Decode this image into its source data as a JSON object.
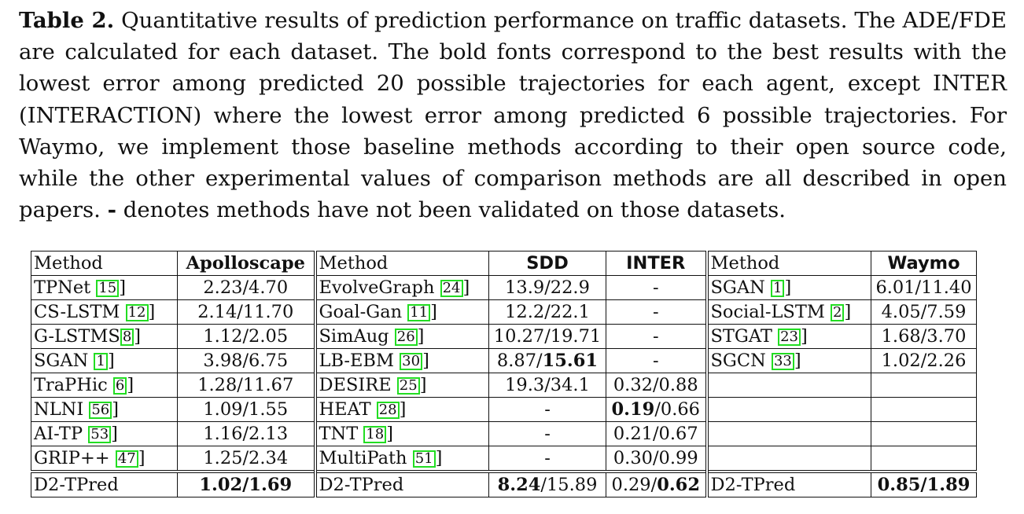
{
  "caption": {
    "label": "Table 2.",
    "text_1": " Quantitative results of prediction performance on traffic datasets. The ADE/FDE are calculated for each dataset. The bold fonts correspond to the best results with the lowest error among predicted 20 possible trajectories for each agent, except INTER (INTERACTION) where the lowest error among predicted 6 possible trajectories. For Waymo, we implement those baseline methods according to their open source code, while the other experimental values of comparison methods are all described in open papers. ",
    "dash": "-",
    "text_2": " denotes methods have not been validated on those datasets."
  },
  "headers": {
    "method_1": "Method",
    "apolloscape": "Apolloscape",
    "method_2": "Method",
    "sdd": "SDD",
    "inter": "INTER",
    "method_3": "Method",
    "waymo": "Waymo"
  },
  "rows": [
    {
      "m1": "TPNet ",
      "r1": "15",
      "a": "2.23/4.70",
      "m2": "EvolveGraph ",
      "r2": "24",
      "sdd": "13.9/22.9",
      "inter": "-",
      "m3": "SGAN ",
      "r3": "1",
      "waymo": "6.01/11.40"
    },
    {
      "m1": "CS-LSTM ",
      "r1": "12",
      "a": "2.14/11.70",
      "m2": "Goal-Gan ",
      "r2": "11",
      "sdd": "12.2/22.1",
      "inter": "-",
      "m3": "Social-LSTM ",
      "r3": "2",
      "waymo": "4.05/7.59"
    },
    {
      "m1": "G-LSTMS",
      "r1": "8",
      "a": "1.12/2.05",
      "m2": "SimAug ",
      "r2": "26",
      "sdd": "10.27/19.71",
      "inter": "-",
      "m3": "STGAT ",
      "r3": "23",
      "waymo": "1.68/3.70"
    },
    {
      "m1": "SGAN ",
      "r1": "1",
      "a": "3.98/6.75",
      "m2": "LB-EBM ",
      "r2": "30",
      "sdd_a": "8.87/",
      "sdd_b": "15.61",
      "inter": "-",
      "m3": "SGCN ",
      "r3": "33",
      "waymo": "1.02/2.26"
    },
    {
      "m1": "TraPHic ",
      "r1": "6",
      "a": "1.28/11.67",
      "m2": "DESIRE ",
      "r2": "25",
      "sdd": "19.3/34.1",
      "inter": "0.32/0.88"
    },
    {
      "m1": "NLNI ",
      "r1": "56",
      "a": "1.09/1.55",
      "m2": "HEAT ",
      "r2": "28",
      "sdd": "-",
      "inter_a": "0.19",
      "inter_b": "/0.66"
    },
    {
      "m1": "AI-TP ",
      "r1": "53",
      "a": "1.16/2.13",
      "m2": "TNT ",
      "r2": "18",
      "sdd": "-",
      "inter": "0.21/0.67"
    },
    {
      "m1": "GRIP++ ",
      "r1": "47",
      "a": "1.25/2.34",
      "m2": "MultiPath ",
      "r2": "51",
      "sdd": "-",
      "inter": "0.30/0.99"
    }
  ],
  "ours": {
    "m1": "D2-TPred",
    "a": "1.02/1.69",
    "m2": "D2-TPred",
    "sdd_a": "8.24",
    "sdd_b": "/15.89",
    "inter_a": "0.29/",
    "inter_b": "0.62",
    "m3": "D2-TPred",
    "waymo": "0.85/1.89"
  },
  "colors": {
    "citation_box": "#22dd22",
    "text": "#111111"
  }
}
